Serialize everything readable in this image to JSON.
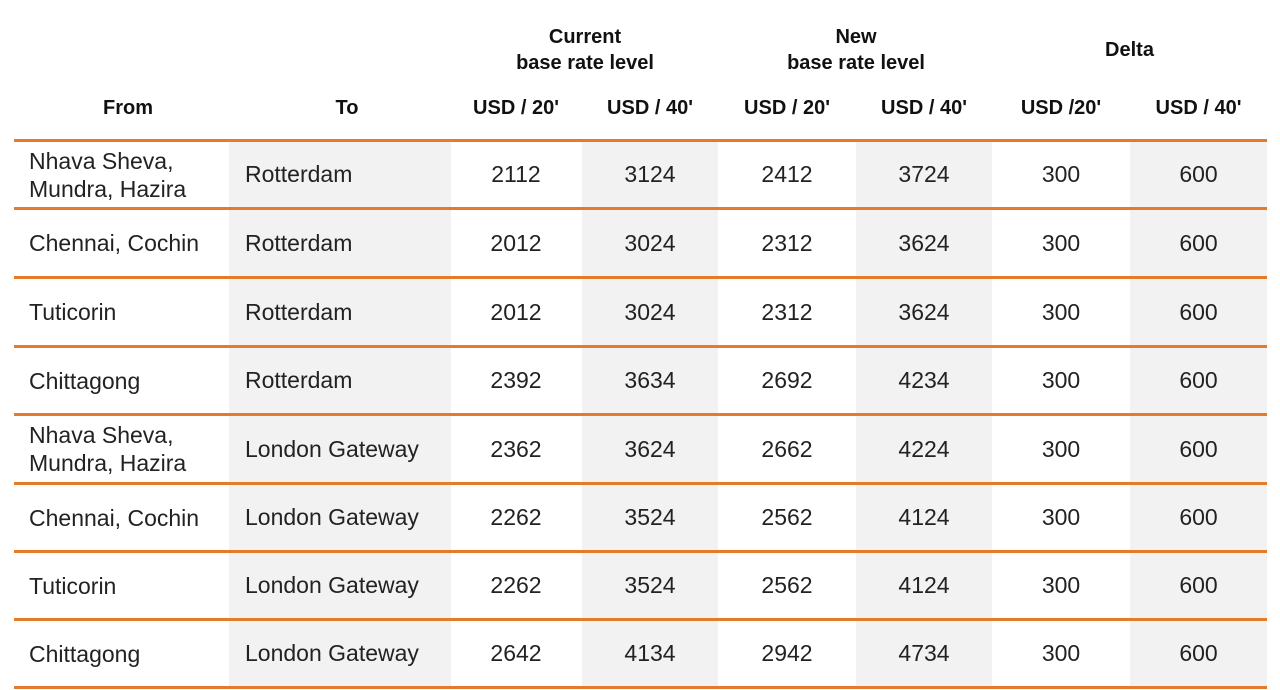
{
  "header": {
    "groups": [
      {
        "line1": "Current",
        "line2": "base rate level"
      },
      {
        "line1": "New",
        "line2": "base rate level"
      },
      {
        "line1": "Delta",
        "line2": ""
      }
    ],
    "columns": [
      "From",
      "To",
      "USD / 20'",
      "USD / 40'",
      "USD / 20'",
      "USD / 40'",
      "USD /20'",
      "USD / 40'"
    ]
  },
  "rows": [
    {
      "from": [
        "Nhava Sheva,",
        "Mundra, Hazira"
      ],
      "to": "Rotterdam",
      "cur20": "2112",
      "cur40": "3124",
      "new20": "2412",
      "new40": "3724",
      "d20": "300",
      "d40": "600"
    },
    {
      "from": [
        "Chennai, Cochin"
      ],
      "to": "Rotterdam",
      "cur20": "2012",
      "cur40": "3024",
      "new20": "2312",
      "new40": "3624",
      "d20": "300",
      "d40": "600"
    },
    {
      "from": [
        "Tuticorin"
      ],
      "to": "Rotterdam",
      "cur20": "2012",
      "cur40": "3024",
      "new20": "2312",
      "new40": "3624",
      "d20": "300",
      "d40": "600"
    },
    {
      "from": [
        "Chittagong"
      ],
      "to": "Rotterdam",
      "cur20": "2392",
      "cur40": "3634",
      "new20": "2692",
      "new40": "4234",
      "d20": "300",
      "d40": "600"
    },
    {
      "from": [
        "Nhava Sheva,",
        "Mundra, Hazira"
      ],
      "to": "London Gateway",
      "cur20": "2362",
      "cur40": "3624",
      "new20": "2662",
      "new40": "4224",
      "d20": "300",
      "d40": "600"
    },
    {
      "from": [
        "Chennai, Cochin"
      ],
      "to": "London Gateway",
      "cur20": "2262",
      "cur40": "3524",
      "new20": "2562",
      "new40": "4124",
      "d20": "300",
      "d40": "600"
    },
    {
      "from": [
        "Tuticorin"
      ],
      "to": "London Gateway",
      "cur20": "2262",
      "cur40": "3524",
      "new20": "2562",
      "new40": "4124",
      "d20": "300",
      "d40": "600"
    },
    {
      "from": [
        "Chittagong"
      ],
      "to": "London Gateway",
      "cur20": "2642",
      "cur40": "4134",
      "new20": "2942",
      "new40": "4734",
      "d20": "300",
      "d40": "600"
    }
  ],
  "colors": {
    "rule": "#e57a2b",
    "shade": "#f2f2f2"
  }
}
